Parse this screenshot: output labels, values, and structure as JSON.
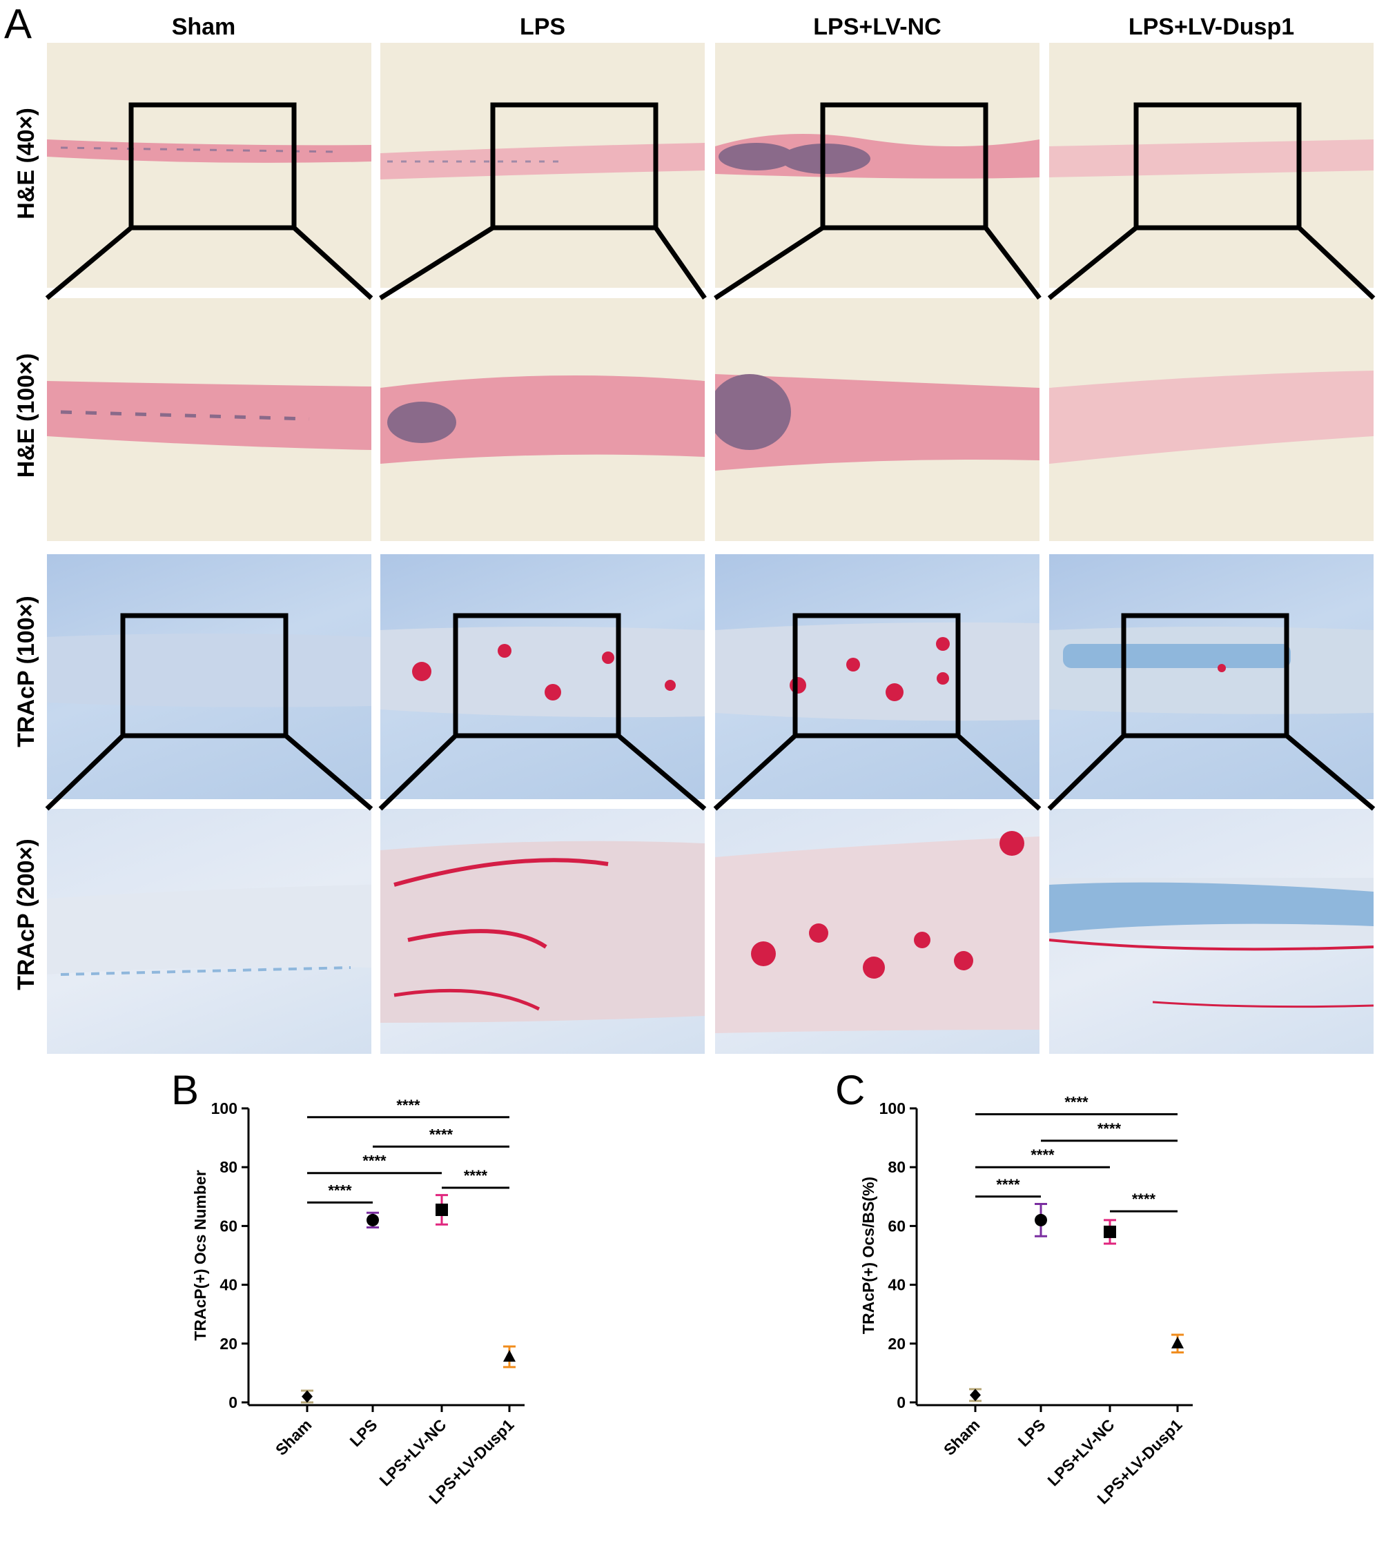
{
  "figure": {
    "panel_labels": [
      "A",
      "B",
      "C"
    ],
    "groups": [
      "Sham",
      "LPS",
      "LPS+LV-NC",
      "LPS+LV-Dusp1"
    ],
    "row_labels": [
      "H&E (40×)",
      "H&E (100×)",
      "TRAcP (100×)",
      "TRAcP (200×)"
    ]
  },
  "colors": {
    "sham": "#b8a878",
    "lps": "#7a2ea0",
    "lv_nc": "#e0267e",
    "lv_dusp1": "#f08c1c",
    "he_background": "#f1ebdb",
    "he_tissue": "#e89aa8",
    "trap_background": "#b9cfe9",
    "trap_stain": "#d41e46"
  },
  "chart_data": [
    {
      "type": "scatter",
      "panel": "B",
      "ylabel": "TRAcP(+) Ocs Number",
      "xlabel": "",
      "categories": [
        "Sham",
        "LPS",
        "LPS+LV-NC",
        "LPS+LV-Dusp1"
      ],
      "values": [
        2,
        62,
        65.5,
        15.5
      ],
      "errors": [
        2,
        2.5,
        5,
        3.5
      ],
      "markers": [
        "diamond",
        "circle",
        "square",
        "triangle"
      ],
      "ylim": [
        0,
        100
      ],
      "yticks": [
        0,
        20,
        40,
        60,
        80,
        100
      ],
      "significance": [
        {
          "from": 0,
          "to": 1,
          "label": "****"
        },
        {
          "from": 0,
          "to": 2,
          "label": "****"
        },
        {
          "from": 2,
          "to": 3,
          "label": "****"
        },
        {
          "from": 1,
          "to": 3,
          "label": "****"
        },
        {
          "from": 0,
          "to": 3,
          "label": "****"
        }
      ]
    },
    {
      "type": "scatter",
      "panel": "C",
      "ylabel": "TRAcP(+) Ocs/BS(%)",
      "xlabel": "",
      "categories": [
        "Sham",
        "LPS",
        "LPS+LV-NC",
        "LPS+LV-Dusp1"
      ],
      "values": [
        2.5,
        62,
        58,
        20
      ],
      "errors": [
        2,
        5.5,
        4,
        3
      ],
      "markers": [
        "diamond",
        "circle",
        "square",
        "triangle"
      ],
      "ylim": [
        0,
        100
      ],
      "yticks": [
        0,
        20,
        40,
        60,
        80,
        100
      ],
      "significance": [
        {
          "from": 0,
          "to": 1,
          "label": "****"
        },
        {
          "from": 0,
          "to": 2,
          "label": "****"
        },
        {
          "from": 2,
          "to": 3,
          "label": "****"
        },
        {
          "from": 1,
          "to": 3,
          "label": "****"
        },
        {
          "from": 0,
          "to": 3,
          "label": "****"
        }
      ]
    }
  ]
}
